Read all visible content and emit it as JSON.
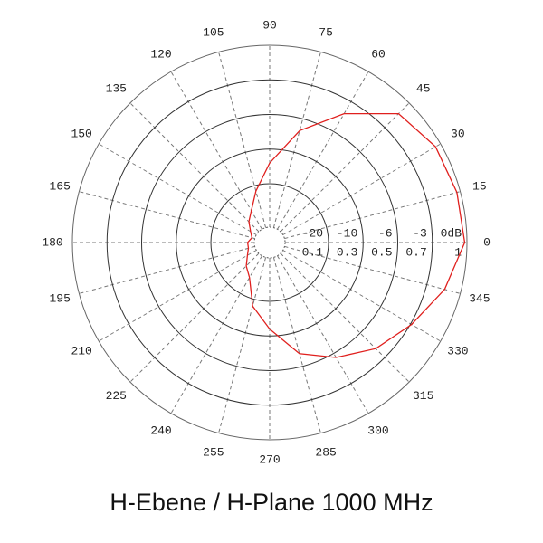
{
  "chart_data": {
    "type": "polar",
    "title": "H-Ebene / H-Plane 1000 MHz",
    "theta": [
      0,
      15,
      30,
      45,
      60,
      75,
      90,
      105,
      120,
      135,
      150,
      165,
      180,
      195,
      210,
      225,
      240,
      255,
      270,
      285,
      300,
      315,
      330,
      345
    ],
    "series": [
      {
        "color": "#e0201e",
        "values": [
          -0.2,
          -0.3,
          -0.5,
          -1.3,
          -4.2,
          -7.4,
          -14,
          -21.5,
          -26,
          -28,
          -30,
          -31,
          -30,
          -30,
          -29,
          -27,
          -25,
          -18,
          -12,
          -7.5,
          -5.6,
          -4.1,
          -2.9,
          -1.4
        ]
      }
    ],
    "rlim": [
      -36,
      0
    ],
    "rticks": [
      -20,
      -10,
      -6,
      -3,
      {
        "value": 0,
        "label": "0dB"
      }
    ],
    "rticks2": [
      0.1,
      0.3,
      0.5,
      0.7,
      1
    ],
    "thetaticks": [
      0,
      15,
      30,
      45,
      60,
      75,
      90,
      105,
      120,
      135,
      150,
      165,
      180,
      195,
      210,
      225,
      240,
      255,
      270,
      285,
      300,
      315,
      330,
      345
    ]
  }
}
